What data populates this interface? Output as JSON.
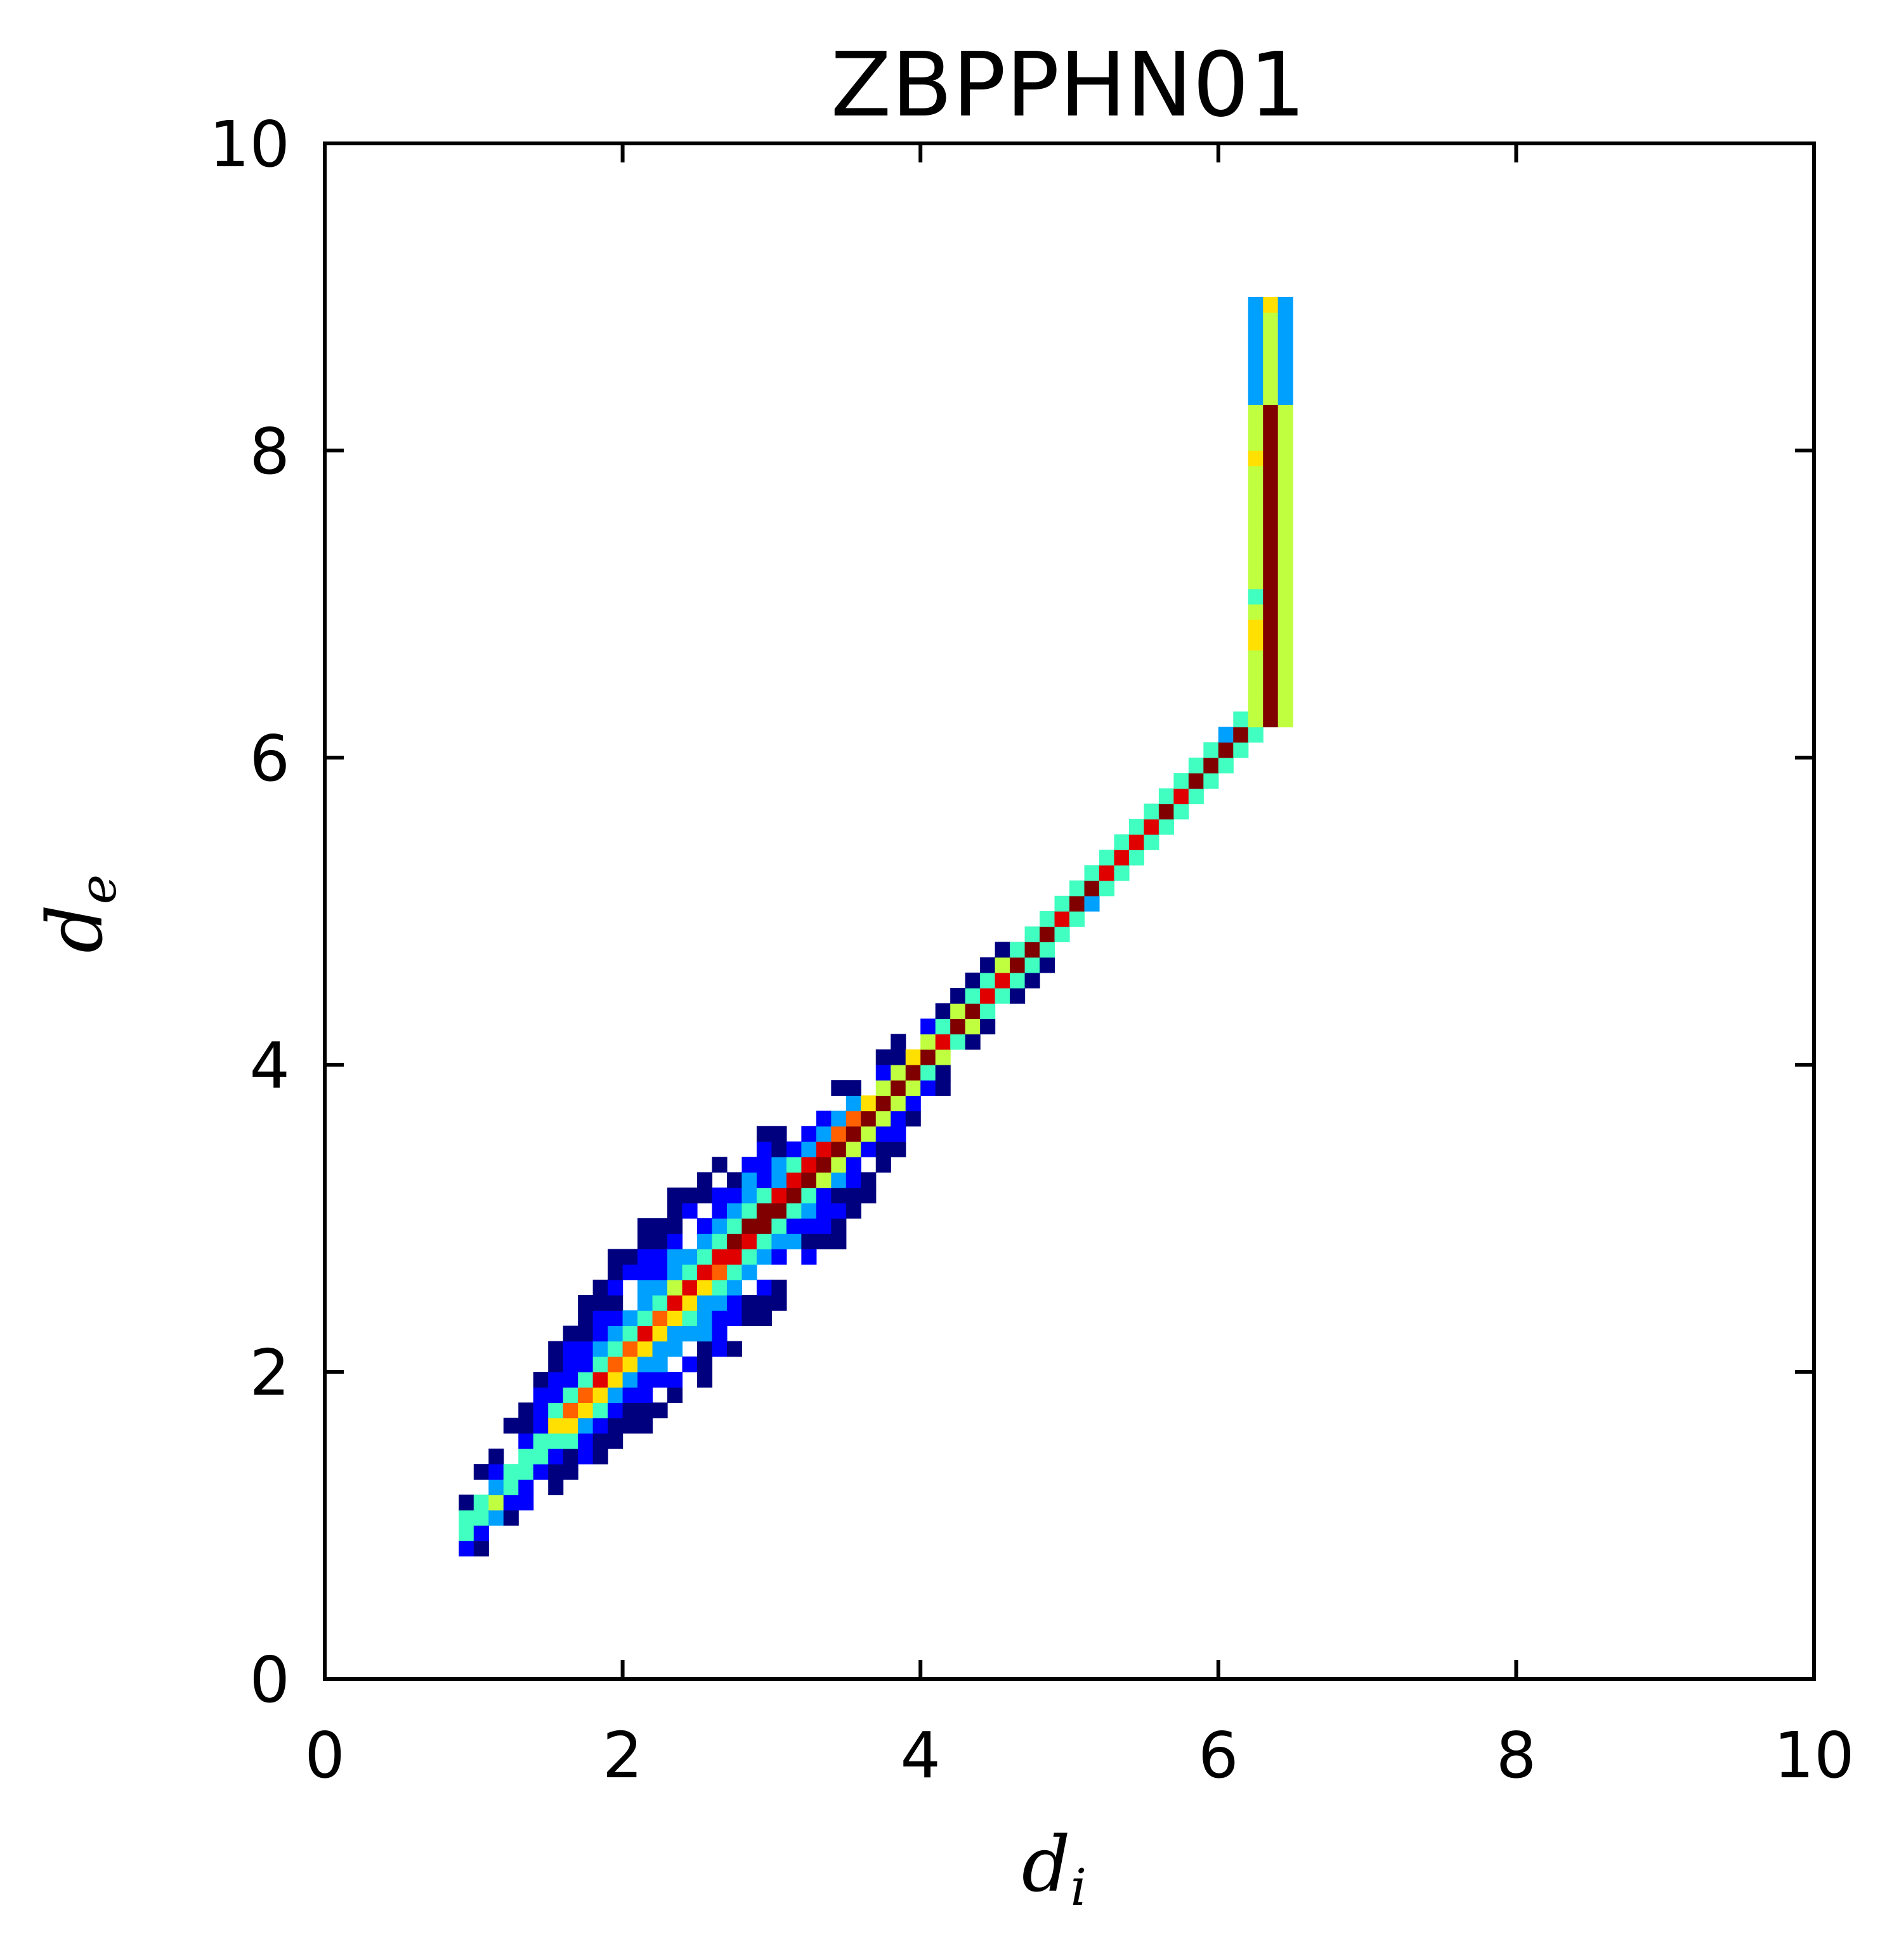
{
  "chart_data": {
    "type": "heatmap",
    "title": "ZBPPHN01",
    "xlabel": {
      "main": "d",
      "sub": "i"
    },
    "ylabel": {
      "main": "d",
      "sub": "e"
    },
    "xlim": [
      0,
      10
    ],
    "ylim": [
      0,
      10
    ],
    "xticks": [
      "0",
      "2",
      "4",
      "6",
      "8",
      "10"
    ],
    "yticks": [
      "0",
      "2",
      "4",
      "6",
      "8",
      "10"
    ],
    "grid": false,
    "legend": "none",
    "bin_size": 0.1,
    "colormap": [
      "#00007f",
      "#0000ff",
      "#00a0ff",
      "#40ffc0",
      "#c0ff40",
      "#ffe000",
      "#ff6000",
      "#e00000",
      "#800000"
    ],
    "density_description": "2D histogram of (d_i, d_e) pairs; main ridge from (1.0,1.0) to (6.3,6.3), peak near (3.2,3.2), vertical band at d_i≈6.35 from d_e 6.3 to 9.0",
    "ridge": [
      [
        1.0,
        1.0
      ],
      [
        1.6,
        1.5
      ],
      [
        2.0,
        2.0
      ],
      [
        2.6,
        2.7
      ],
      [
        3.0,
        3.0
      ],
      [
        3.5,
        3.5
      ],
      [
        4.0,
        4.0
      ],
      [
        4.5,
        4.5
      ],
      [
        5.0,
        5.0
      ],
      [
        5.5,
        5.5
      ],
      [
        6.0,
        6.0
      ],
      [
        6.35,
        6.35
      ],
      [
        6.35,
        9.0
      ]
    ],
    "peak": [
      3.2,
      3.2
    ]
  }
}
